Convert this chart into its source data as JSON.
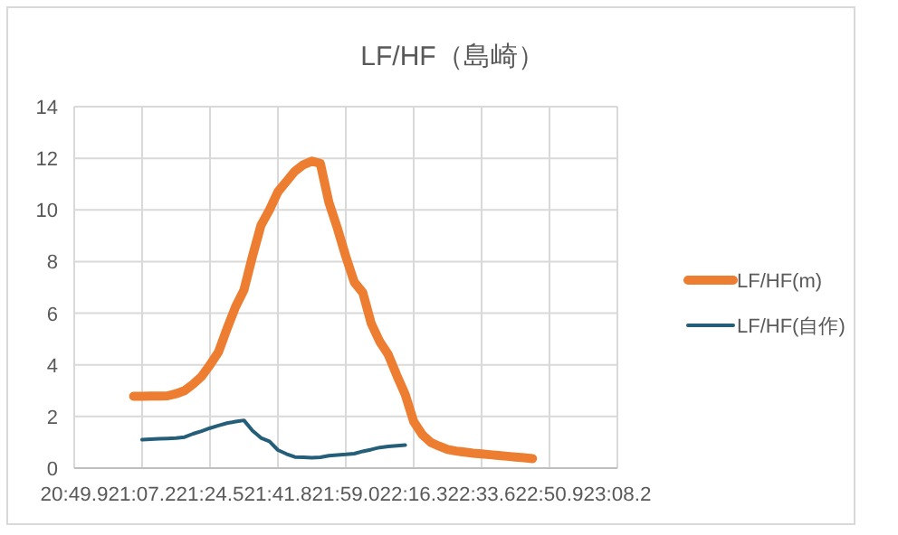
{
  "chart_data": {
    "type": "line",
    "title": "LF/HF（島崎）",
    "categories": [
      "20:49.9",
      null,
      null,
      null,
      null,
      null,
      null,
      null,
      "21:07.2",
      null,
      null,
      null,
      null,
      null,
      null,
      null,
      "21:24.5",
      null,
      null,
      null,
      null,
      null,
      null,
      null,
      "21:41.8",
      null,
      null,
      null,
      null,
      null,
      null,
      null,
      "21:59.0",
      null,
      null,
      null,
      null,
      null,
      null,
      null,
      "22:16.3",
      null,
      null,
      null,
      null,
      null,
      null,
      null,
      "22:33.6",
      null,
      null,
      null,
      null,
      null,
      null,
      null,
      "22:50.9",
      null,
      null,
      null,
      null,
      null,
      null,
      null,
      "23:08.2"
    ],
    "ylim": [
      0,
      14
    ],
    "yticks": [
      0,
      2,
      4,
      6,
      8,
      10,
      12,
      14
    ],
    "grid": true,
    "legend": "right",
    "marker": "none",
    "line_style": "solid",
    "series": [
      {
        "name": "LF/HF(m)",
        "color": "#ed7d31",
        "values": [
          null,
          null,
          null,
          null,
          null,
          null,
          null,
          2.78,
          2.78,
          2.79,
          2.79,
          2.8,
          2.88,
          3.0,
          3.25,
          3.55,
          4.0,
          4.5,
          5.4,
          6.24,
          6.9,
          8.2,
          9.4,
          10.0,
          10.7,
          11.1,
          11.5,
          11.75,
          11.89,
          11.8,
          10.3,
          9.3,
          8.2,
          7.2,
          6.8,
          5.6,
          4.9,
          4.4,
          3.6,
          2.85,
          1.8,
          1.3,
          1.0,
          0.85,
          0.72,
          0.66,
          0.62,
          0.58,
          0.55,
          0.52,
          0.49,
          0.46,
          0.43,
          0.4,
          0.37,
          null,
          null,
          null,
          null,
          null,
          null,
          null,
          null,
          null,
          null
        ]
      },
      {
        "name": "LF/HF(自作)",
        "color": "#255e78",
        "values": [
          null,
          null,
          null,
          null,
          null,
          null,
          null,
          null,
          1.1,
          1.12,
          1.14,
          1.15,
          1.16,
          1.2,
          1.33,
          1.43,
          1.55,
          1.65,
          1.74,
          1.8,
          1.85,
          1.45,
          1.17,
          1.04,
          0.7,
          0.55,
          0.43,
          0.42,
          0.4,
          0.42,
          0.48,
          0.51,
          0.53,
          0.56,
          0.65,
          0.72,
          0.8,
          0.84,
          0.87,
          0.89,
          null,
          null,
          null,
          null,
          null,
          null,
          null,
          null,
          null,
          null,
          null,
          null,
          null,
          null,
          null,
          null,
          null,
          null,
          null,
          null,
          null,
          null,
          null,
          null,
          null
        ]
      }
    ]
  }
}
